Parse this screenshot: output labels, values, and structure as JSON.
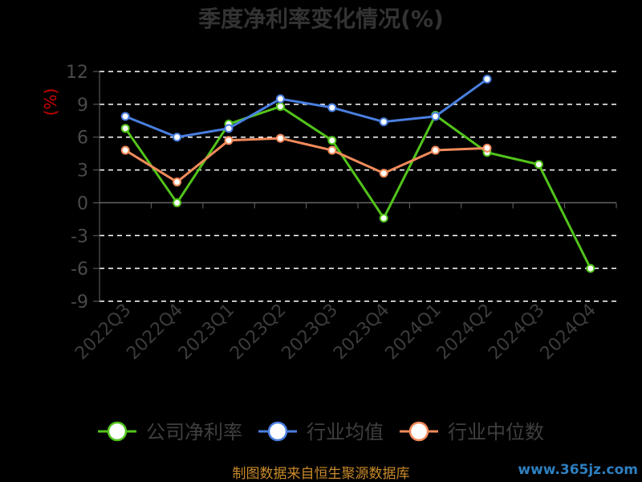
{
  "colors": {
    "company": "#52c41a",
    "industry_avg": "#4a7fe0",
    "industry_median": "#f08a5a",
    "grid": "#ffffff",
    "axis": "#666666"
  },
  "footer": {
    "source": "制图数据来自恒生聚源数据库",
    "watermark": "www.365jz.com"
  },
  "chart_data": {
    "type": "line",
    "title": "季度净利率变化情况(%)",
    "ylabel": "(%)",
    "ylim": [
      -9,
      12
    ],
    "yticks": [
      12,
      9,
      6,
      3,
      0,
      -3,
      -6,
      -9
    ],
    "grid": true,
    "legend_position": "bottom",
    "categories": [
      "2022Q3",
      "2022Q4",
      "2023Q1",
      "2023Q2",
      "2023Q3",
      "2023Q4",
      "2024Q1",
      "2024Q2",
      "2024Q3",
      "2024Q4"
    ],
    "series": [
      {
        "name": "公司净利率",
        "color_key": "company",
        "values": [
          6.8,
          0.0,
          7.2,
          8.8,
          5.7,
          -1.4,
          8.0,
          4.6,
          3.5,
          -6.0
        ]
      },
      {
        "name": "行业均值",
        "color_key": "industry_avg",
        "values": [
          7.9,
          6.0,
          6.8,
          9.5,
          8.7,
          7.4,
          7.9,
          11.3,
          null,
          null
        ]
      },
      {
        "name": "行业中位数",
        "color_key": "industry_median",
        "values": [
          4.8,
          1.9,
          5.7,
          5.9,
          4.8,
          2.7,
          4.8,
          5.0,
          null,
          null
        ]
      }
    ]
  }
}
